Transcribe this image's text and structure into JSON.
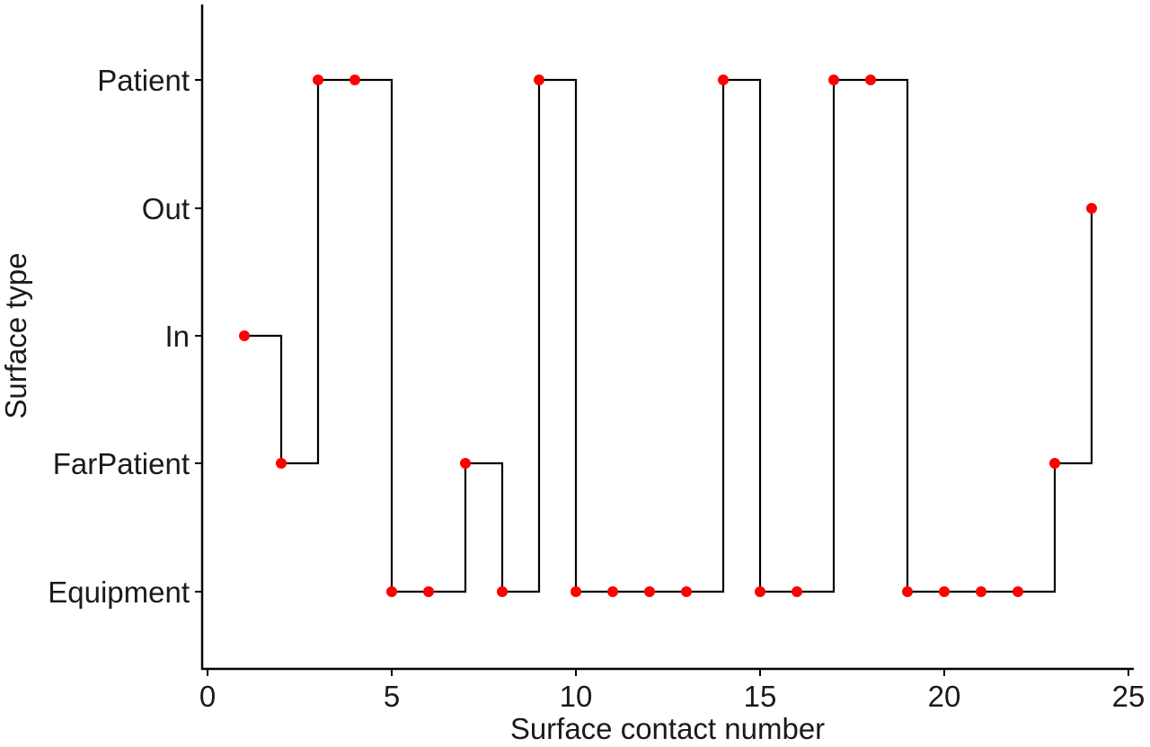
{
  "chart_data": {
    "type": "line",
    "line_style": "step",
    "xlabel": "Surface contact number",
    "ylabel": "Surface type",
    "xlim": [
      0,
      25
    ],
    "x_ticks": [
      0,
      5,
      10,
      15,
      20,
      25
    ],
    "x_tick_labels": [
      "0",
      "5",
      "10",
      "15",
      "20",
      "25"
    ],
    "categories_y": [
      "Equipment",
      "FarPatient",
      "In",
      "Out",
      "Patient"
    ],
    "grid": false,
    "legend": "none",
    "colors": {
      "line": "#000000",
      "point": "#ff0000",
      "axis": "#000000"
    },
    "series": [
      {
        "x": [
          1,
          2,
          3,
          4,
          5,
          6,
          7,
          8,
          9,
          10,
          11,
          12,
          13,
          14,
          15,
          16,
          17,
          18,
          19,
          20,
          21,
          22,
          23,
          24
        ],
        "y": [
          "In",
          "FarPatient",
          "Patient",
          "Patient",
          "Equipment",
          "Equipment",
          "FarPatient",
          "Equipment",
          "Patient",
          "Equipment",
          "Equipment",
          "Equipment",
          "Equipment",
          "Patient",
          "Equipment",
          "Equipment",
          "Patient",
          "Patient",
          "Equipment",
          "Equipment",
          "Equipment",
          "Equipment",
          "FarPatient",
          "Out"
        ]
      }
    ]
  }
}
